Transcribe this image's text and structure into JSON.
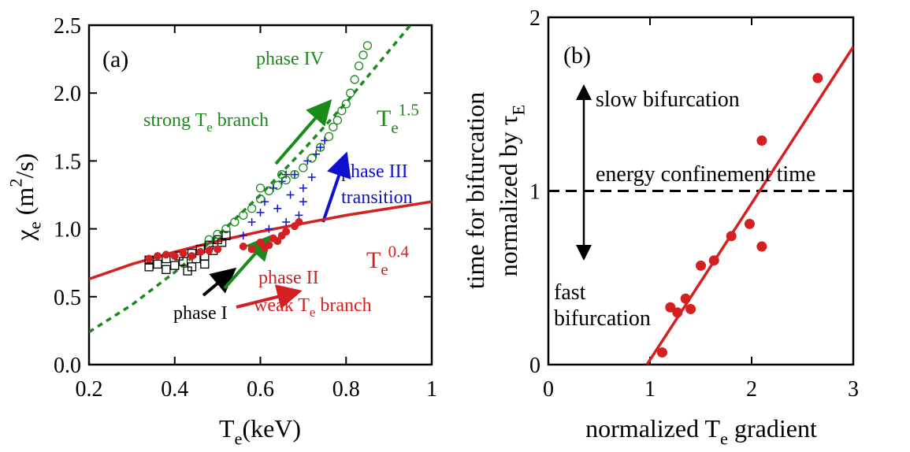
{
  "chart_data": [
    {
      "type": "scatter",
      "xlabel": [
        {
          "text": "T"
        },
        {
          "text": "e",
          "sub": true
        },
        {
          "text": "(keV)"
        }
      ],
      "ylabel": [
        {
          "text": "χ"
        },
        {
          "text": "e",
          "sub": true
        },
        {
          "text": " (m"
        },
        {
          "text": "2",
          "sup": true
        },
        {
          "text": "/s)"
        }
      ],
      "xlim": [
        0.2,
        1
      ],
      "ylim": [
        0,
        2.5
      ],
      "xticks": [
        0.2,
        0.4,
        0.6,
        0.8,
        1
      ],
      "yticks": [
        {
          "value": 0,
          "label": "0.0"
        },
        0.5,
        {
          "value": 1,
          "label": "1.0"
        },
        1.5,
        {
          "value": 2,
          "label": "2.0"
        },
        2.5
      ],
      "series": [
        {
          "type": "line",
          "color": "#d42020",
          "dash": false,
          "x": [
            0.2,
            0.3,
            0.4,
            0.5,
            0.6,
            0.7,
            0.8,
            0.9,
            1.0
          ],
          "values": [
            0.63,
            0.74,
            0.83,
            0.91,
            0.98,
            1.04,
            1.1,
            1.15,
            1.2
          ]
        },
        {
          "type": "line",
          "color": "#1a8a1a",
          "dash": true,
          "x": [
            0.2,
            0.3,
            0.4,
            0.5,
            0.6,
            0.7,
            0.8,
            0.9,
            0.95
          ],
          "values": [
            0.24,
            0.44,
            0.68,
            0.95,
            1.25,
            1.58,
            1.93,
            2.31,
            2.5
          ]
        },
        {
          "type": "scatter",
          "marker": "square-open",
          "color": "#000000",
          "x": [
            0.34,
            0.34,
            0.36,
            0.38,
            0.38,
            0.4,
            0.41,
            0.42,
            0.43,
            0.44,
            0.45,
            0.46,
            0.47,
            0.48,
            0.49,
            0.5,
            0.51,
            0.52,
            0.44,
            0.47
          ],
          "values": [
            0.72,
            0.77,
            0.74,
            0.7,
            0.78,
            0.73,
            0.8,
            0.76,
            0.69,
            0.82,
            0.78,
            0.85,
            0.8,
            0.88,
            0.84,
            0.92,
            0.9,
            0.95,
            0.72,
            0.74
          ]
        },
        {
          "type": "scatter",
          "marker": "plus",
          "color": "#1010d0",
          "x": [
            0.56,
            0.58,
            0.6,
            0.61,
            0.62,
            0.63,
            0.64,
            0.65,
            0.66,
            0.67,
            0.68,
            0.69,
            0.7,
            0.71,
            0.72,
            0.73,
            0.74,
            0.75,
            0.7,
            0.66
          ],
          "values": [
            0.95,
            1.05,
            1.12,
            1.2,
            1.0,
            1.3,
            1.15,
            1.35,
            1.05,
            1.25,
            1.4,
            1.1,
            1.3,
            1.5,
            1.38,
            1.55,
            1.6,
            1.65,
            1.2,
            1.4
          ]
        },
        {
          "type": "scatter",
          "marker": "circle-open",
          "color": "#1a8a1a",
          "x": [
            0.48,
            0.5,
            0.52,
            0.54,
            0.56,
            0.58,
            0.6,
            0.62,
            0.64,
            0.66,
            0.68,
            0.7,
            0.72,
            0.74,
            0.76,
            0.77,
            0.78,
            0.79,
            0.8,
            0.81,
            0.82,
            0.83,
            0.84,
            0.85,
            0.6,
            0.65
          ],
          "values": [
            0.92,
            0.96,
            1.0,
            1.05,
            1.1,
            1.15,
            1.22,
            1.28,
            1.32,
            1.36,
            1.4,
            1.45,
            1.52,
            1.6,
            1.68,
            1.75,
            1.8,
            1.87,
            1.92,
            2.0,
            2.1,
            2.2,
            2.28,
            2.35,
            1.3,
            1.4
          ]
        },
        {
          "type": "scatter",
          "marker": "circle-filled",
          "color": "#d42020",
          "x": [
            0.34,
            0.36,
            0.38,
            0.4,
            0.42,
            0.44,
            0.46,
            0.48,
            0.5,
            0.56,
            0.58,
            0.6,
            0.62,
            0.63,
            0.65,
            0.66,
            0.68,
            0.69,
            0.64,
            0.61
          ],
          "values": [
            0.78,
            0.8,
            0.81,
            0.8,
            0.82,
            0.8,
            0.83,
            0.84,
            0.85,
            0.87,
            0.85,
            0.9,
            0.88,
            0.93,
            0.95,
            0.98,
            1.02,
            1.05,
            0.91,
            0.86
          ]
        }
      ],
      "annotations": [
        {
          "color": "#000000",
          "pieces": [
            {
              "text": "(a)"
            }
          ]
        },
        {
          "color": "#1a8a1a",
          "pieces": [
            {
              "text": "phase IV"
            }
          ]
        },
        {
          "color": "#1a8a1a",
          "pieces": [
            {
              "text": "strong T"
            },
            {
              "text": "e",
              "sub": true
            },
            {
              "text": " branch"
            }
          ]
        },
        {
          "color": "#1a8a1a",
          "pieces": [
            {
              "text": "T"
            },
            {
              "text": "e",
              "sub": true
            },
            {
              "text": "1.5",
              "sup": true
            }
          ]
        },
        {
          "color": "#1010d0",
          "pieces": [
            {
              "text": "phase III"
            }
          ]
        },
        {
          "color": "#1010d0",
          "pieces": [
            {
              "text": "transition"
            }
          ]
        },
        {
          "color": "#d42020",
          "pieces": [
            {
              "text": "T"
            },
            {
              "text": "e",
              "sub": true
            },
            {
              "text": "0.4",
              "sup": true
            }
          ]
        },
        {
          "color": "#d42020",
          "pieces": [
            {
              "text": "phase II"
            }
          ]
        },
        {
          "color": "#d42020",
          "pieces": [
            {
              "text": "weak T"
            },
            {
              "text": "e",
              "sub": true
            },
            {
              "text": " branch"
            }
          ]
        },
        {
          "color": "#000000",
          "pieces": [
            {
              "text": "phase I"
            }
          ]
        }
      ]
    },
    {
      "type": "scatter",
      "xlabel": [
        {
          "text": "normalized T"
        },
        {
          "text": "e",
          "sub": true
        },
        {
          "text": " gradient"
        }
      ],
      "ylabel": [
        {
          "text": "time for bifurcation"
        }
      ],
      "ylabel2": [
        {
          "text": "normalized by τ"
        },
        {
          "text": "E",
          "sub": true
        }
      ],
      "xlim": [
        0,
        3
      ],
      "ylim": [
        0,
        2
      ],
      "xticks": [
        0,
        1,
        2,
        3
      ],
      "yticks": [
        0,
        1,
        2
      ],
      "hline": {
        "value": 1,
        "dash": true,
        "color": "#000000"
      },
      "series": [
        {
          "type": "line",
          "color": "#d42020",
          "dash": false,
          "x": [
            0.97,
            3
          ],
          "values": [
            0,
            1.83
          ]
        },
        {
          "type": "scatter",
          "marker": "circle-filled",
          "color": "#d42020",
          "x": [
            1.12,
            1.2,
            1.27,
            1.35,
            1.4,
            1.5,
            1.63,
            1.8,
            1.98,
            2.1,
            2.1,
            2.65
          ],
          "values": [
            0.07,
            0.33,
            0.3,
            0.38,
            0.32,
            0.57,
            0.6,
            0.74,
            0.81,
            1.29,
            0.68,
            1.65
          ]
        }
      ],
      "annotations": [
        {
          "color": "#000000",
          "pieces": [
            {
              "text": "(b)"
            }
          ]
        },
        {
          "color": "#000000",
          "pieces": [
            {
              "text": "slow bifurcation"
            }
          ]
        },
        {
          "color": "#000000",
          "pieces": [
            {
              "text": "energy confinement time"
            }
          ]
        },
        {
          "color": "#000000",
          "pieces": [
            {
              "text": "fast"
            }
          ]
        },
        {
          "color": "#000000",
          "pieces": [
            {
              "text": "bifurcation"
            }
          ]
        }
      ]
    }
  ]
}
